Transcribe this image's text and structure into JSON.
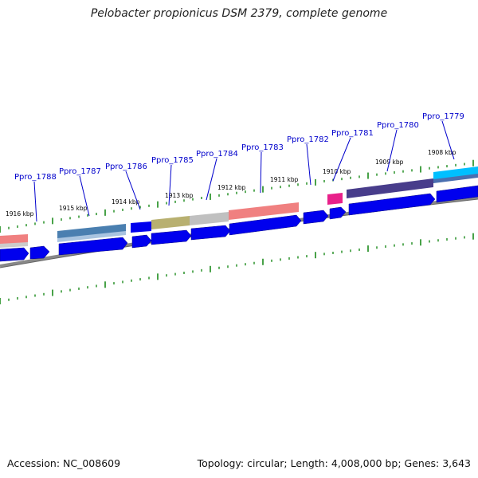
{
  "title": "Pelobacter propionicus DSM 2379, complete genome",
  "footer": {
    "accession": "Accession: NC_008609",
    "summary": "Topology: circular; Length: 4,008,000 bp; Genes: 3,643"
  },
  "colors": {
    "gene_arrow": "#0000ee",
    "backbone": "#888888",
    "tick": "#1a8a1a",
    "label": "#0000cc"
  },
  "kbp_labels": [
    "1916 kbp",
    "1915 kbp",
    "1914 kbp",
    "1913 kbp",
    "1912 kbp",
    "1911 kbp",
    "1910 kbp",
    "1909 kbp",
    "1908 kbp"
  ],
  "gene_labels": [
    "Ppro_1788",
    "Ppro_1787",
    "Ppro_1786",
    "Ppro_1785",
    "Ppro_1784",
    "Ppro_1783",
    "Ppro_1782",
    "Ppro_1781",
    "Ppro_1780",
    "Ppro_1779"
  ],
  "feature_colors": [
    "#f08080",
    "#4a7fb0",
    "#b8b070",
    "#c0c0c0",
    "#f08080",
    "#e8208a",
    "#483d8b",
    "#00bfff"
  ]
}
